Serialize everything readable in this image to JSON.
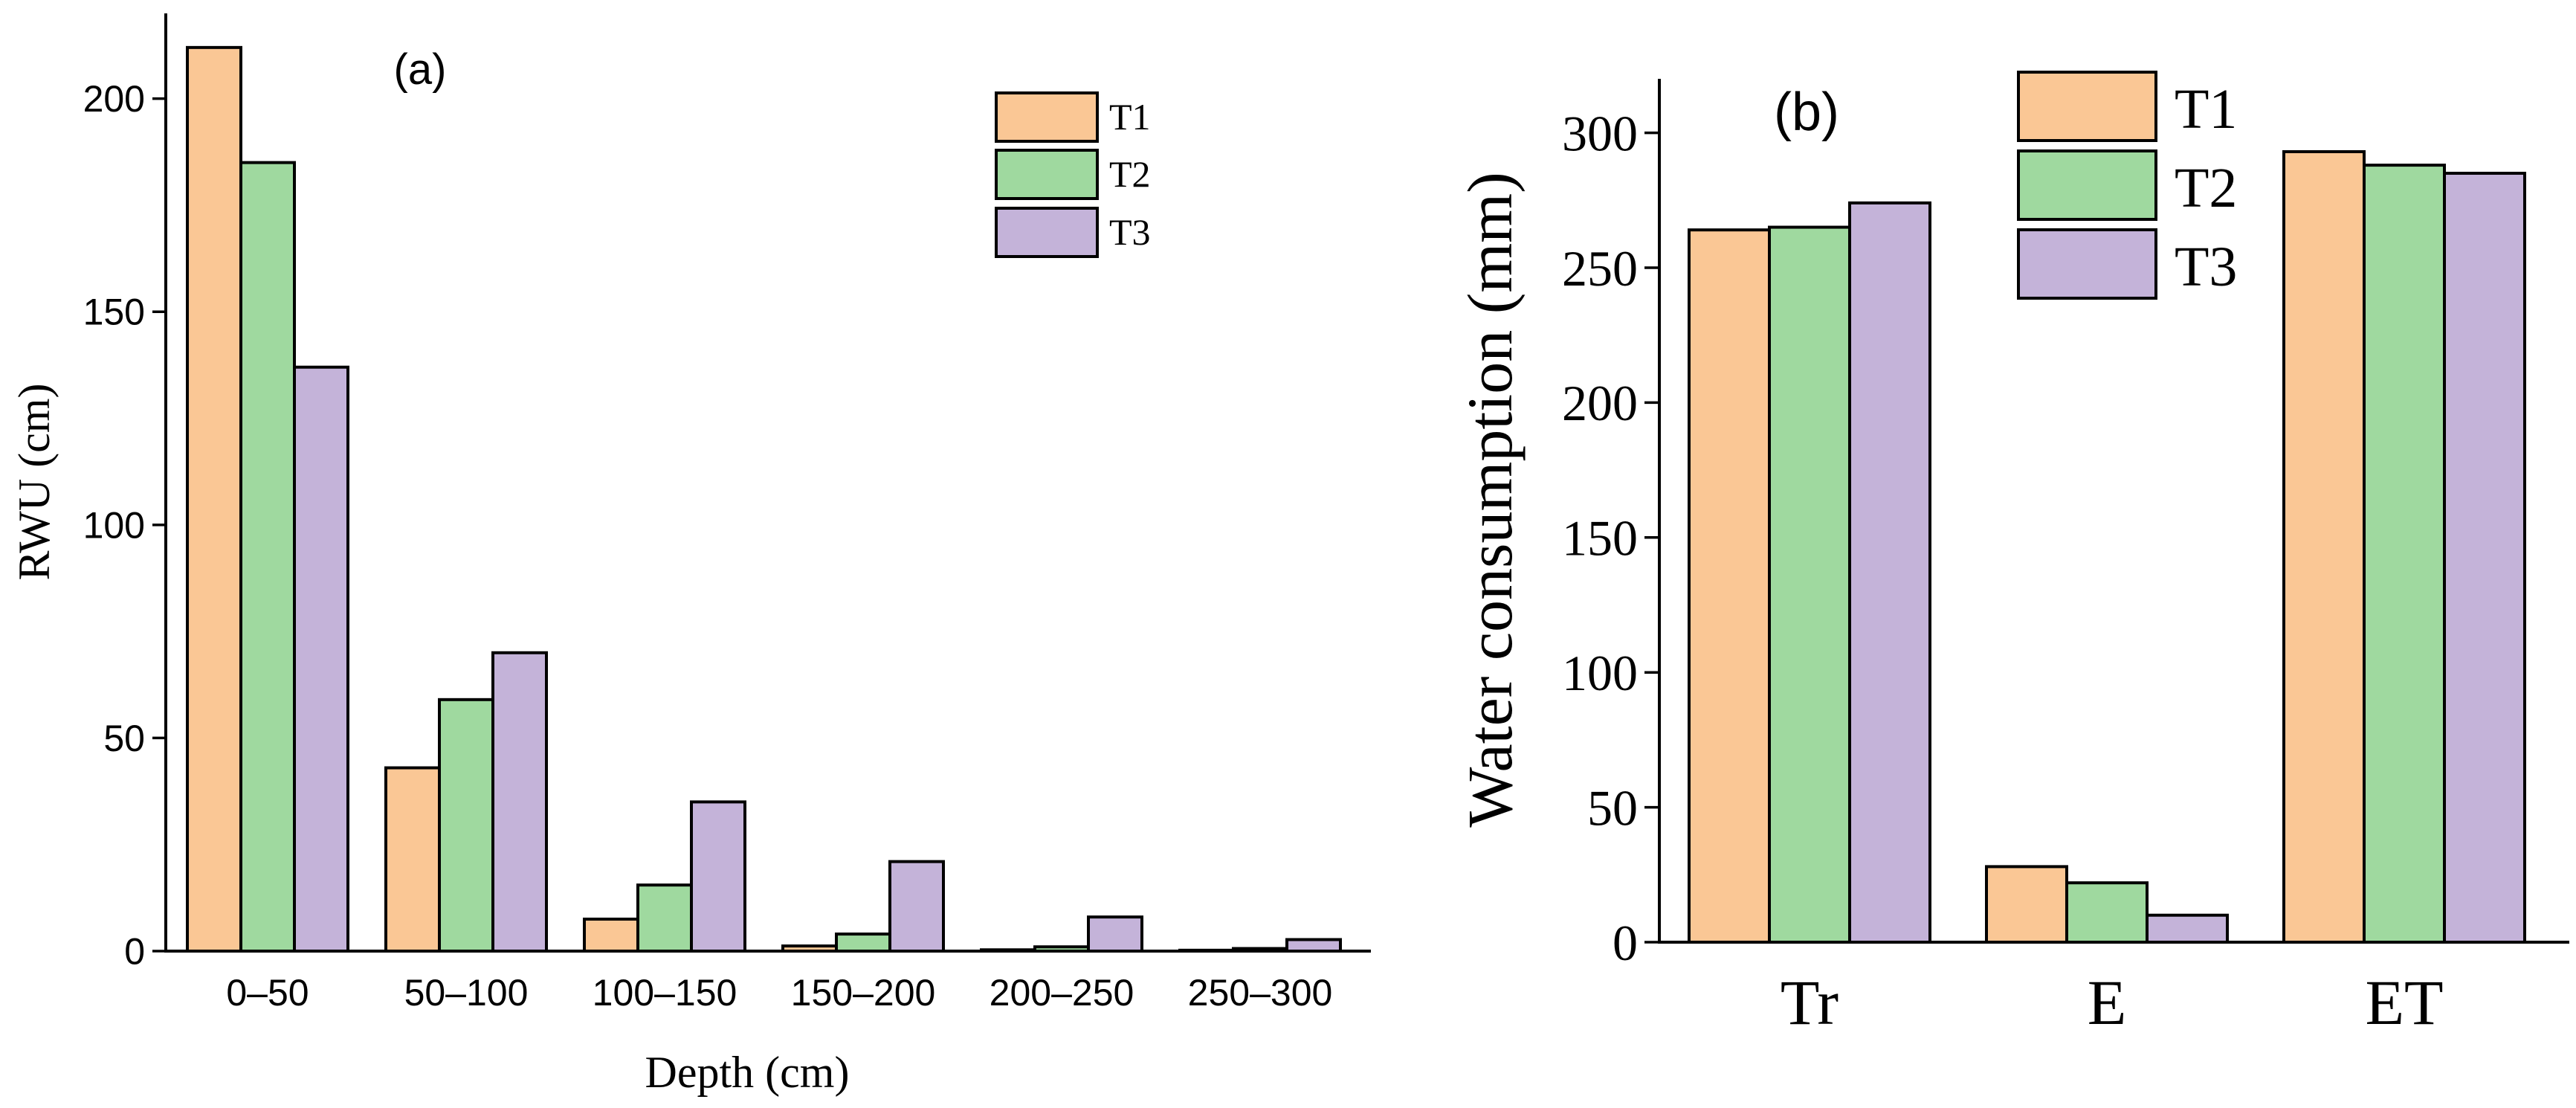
{
  "colors": {
    "T1": "#FAC795",
    "T2": "#9FD99F",
    "T3": "#C4B3D9"
  },
  "chart_data": [
    {
      "type": "bar",
      "panel_label": "(a)",
      "title": "",
      "xlabel": "Depth (cm)",
      "ylabel": "RWU (cm)",
      "categories": [
        "0–50",
        "50–100",
        "100–150",
        "150–200",
        "200–250",
        "250–300"
      ],
      "series": [
        {
          "name": "T1",
          "values": [
            212,
            43,
            7.5,
            1.2,
            0.3,
            0.2
          ]
        },
        {
          "name": "T2",
          "values": [
            185,
            59,
            15.5,
            4,
            1,
            0.6
          ]
        },
        {
          "name": "T3",
          "values": [
            137,
            70,
            35,
            21,
            8,
            2.7
          ]
        }
      ],
      "ylim": [
        0,
        220
      ],
      "yticks": [
        "0",
        "50",
        "100",
        "150",
        "200"
      ],
      "legend": "top-right",
      "grid": false
    },
    {
      "type": "bar",
      "panel_label": "(b)",
      "title": "",
      "xlabel": "",
      "ylabel": "Water consumption (mm)",
      "categories": [
        "Tr",
        "E",
        "ET"
      ],
      "series": [
        {
          "name": "T1",
          "values": [
            264,
            28,
            293
          ]
        },
        {
          "name": "T2",
          "values": [
            265,
            22,
            288
          ]
        },
        {
          "name": "T3",
          "values": [
            274,
            10,
            285
          ]
        }
      ],
      "ylim": [
        0,
        320
      ],
      "yticks": [
        "0",
        "50",
        "100",
        "150",
        "200",
        "250",
        "300"
      ],
      "legend": "top-left",
      "grid": false
    }
  ]
}
